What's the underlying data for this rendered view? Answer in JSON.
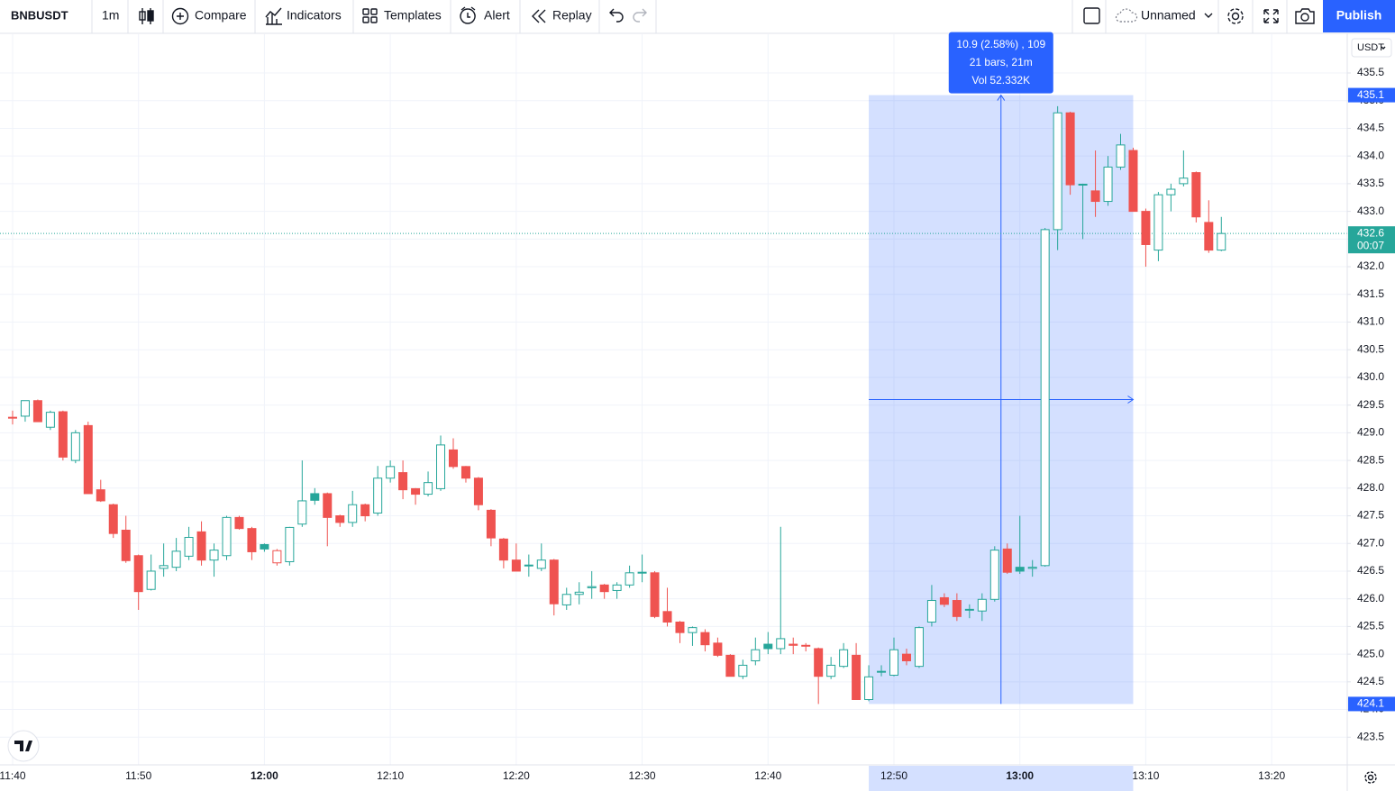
{
  "toolbar": {
    "symbol": "BNBUSDT",
    "interval": "1m",
    "compare": "Compare",
    "indicators": "Indicators",
    "templates": "Templates",
    "alert": "Alert",
    "replay": "Replay",
    "layout": "Unnamed",
    "publish": "Publish"
  },
  "price_axis_currency": "USDT",
  "chart_data": {
    "type": "candlestick",
    "up_color": "#26a69a",
    "down_color": "#ef5350",
    "grid": true,
    "xlim": [
      "11:39",
      "13:26"
    ],
    "xticks": [
      "11:40",
      "11:50",
      "12:00",
      "12:10",
      "12:20",
      "12:30",
      "12:40",
      "12:50",
      "13:00",
      "13:10",
      "13:20"
    ],
    "ylim": [
      423.0,
      436.2
    ],
    "yticks": [
      423.5,
      {
        "value": 424,
        "label": "424.0"
      },
      424.5,
      {
        "value": 425,
        "label": "425.0"
      },
      425.5,
      {
        "value": 426,
        "label": "426.0"
      },
      426.5,
      {
        "value": 427,
        "label": "427.0"
      },
      427.5,
      {
        "value": 428,
        "label": "428.0"
      },
      428.5,
      {
        "value": 429,
        "label": "429.0"
      },
      429.5,
      {
        "value": 430,
        "label": "430.0"
      },
      430.5,
      {
        "value": 431,
        "label": "431.0"
      },
      431.5,
      {
        "value": 432,
        "label": "432.0"
      },
      432.5,
      {
        "value": 433,
        "label": "433.0"
      },
      433.5,
      {
        "value": 434,
        "label": "434.0"
      },
      434.5,
      {
        "value": 435,
        "label": "435.0"
      },
      435.5
    ],
    "x": [
      "11:40",
      "11:41",
      "11:42",
      "11:43",
      "11:44",
      "11:45",
      "11:46",
      "11:47",
      "11:48",
      "11:49",
      "11:50",
      "11:51",
      "11:52",
      "11:53",
      "11:54",
      "11:55",
      "11:56",
      "11:57",
      "11:58",
      "11:59",
      "12:00",
      "12:01",
      "12:02",
      "12:03",
      "12:04",
      "12:05",
      "12:06",
      "12:07",
      "12:08",
      "12:09",
      "12:10",
      "12:11",
      "12:12",
      "12:13",
      "12:14",
      "12:15",
      "12:16",
      "12:17",
      "12:18",
      "12:19",
      "12:20",
      "12:21",
      "12:22",
      "12:23",
      "12:24",
      "12:25",
      "12:26",
      "12:27",
      "12:28",
      "12:29",
      "12:30",
      "12:31",
      "12:32",
      "12:33",
      "12:34",
      "12:35",
      "12:36",
      "12:37",
      "12:38",
      "12:39",
      "12:40",
      "12:41",
      "12:42",
      "12:43",
      "12:44",
      "12:45",
      "12:46",
      "12:47",
      "12:48",
      "12:49",
      "12:50",
      "12:51",
      "12:52",
      "12:53",
      "12:54",
      "12:55",
      "12:56",
      "12:57",
      "12:58",
      "12:59",
      "13:00",
      "13:01",
      "13:02",
      "13:03",
      "13:04",
      "13:05",
      "13:06",
      "13:07",
      "13:08",
      "13:09",
      "13:10",
      "13:11",
      "13:12",
      "13:13",
      "13:14",
      "13:15",
      "13:16"
    ],
    "open": [
      429.28,
      429.3,
      429.58,
      429.1,
      429.38,
      428.5,
      429.13,
      427.97,
      427.7,
      427.24,
      426.78,
      426.17,
      426.55,
      426.57,
      426.77,
      427.21,
      426.7,
      426.78,
      427.47,
      427.27,
      426.98,
      426.65,
      426.67,
      427.35,
      427.9,
      427.9,
      427.5,
      427.38,
      427.7,
      427.55,
      428.18,
      428.28,
      427.99,
      427.89,
      427.99,
      428.69,
      428.39,
      428.18,
      427.6,
      427.08,
      426.7,
      426.6,
      426.55,
      426.7,
      425.89,
      426.08,
      426.2,
      426.25,
      426.15,
      426.25,
      426.47,
      426.47,
      425.77,
      425.58,
      425.39,
      425.39,
      425.2,
      424.98,
      424.6,
      424.88,
      425.18,
      425.1,
      425.18,
      425.16,
      425.1,
      424.6,
      424.78,
      424.98,
      424.18,
      424.68,
      424.62,
      425.0,
      424.78,
      425.58,
      426.02,
      425.97,
      425.8,
      425.78,
      425.99,
      426.9,
      426.57,
      426.55,
      426.6,
      432.67,
      434.78,
      433.48,
      433.37,
      433.18,
      433.8,
      434.1,
      433.0,
      432.3,
      433.3,
      433.5,
      433.7,
      432.8,
      432.3
    ],
    "high": [
      429.4,
      429.58,
      429.6,
      429.4,
      429.4,
      429.05,
      429.2,
      428.15,
      427.72,
      427.5,
      426.8,
      426.8,
      427.0,
      427.1,
      427.3,
      427.4,
      427.0,
      427.5,
      427.5,
      427.3,
      427.0,
      426.9,
      427.3,
      428.5,
      428.0,
      427.92,
      427.52,
      427.95,
      427.72,
      428.4,
      428.5,
      428.5,
      428.0,
      428.3,
      428.95,
      428.9,
      428.4,
      428.2,
      427.62,
      427.1,
      427.0,
      426.8,
      427.0,
      426.72,
      426.2,
      426.3,
      426.5,
      426.27,
      426.3,
      426.6,
      426.8,
      426.5,
      426.2,
      425.6,
      425.5,
      425.45,
      425.3,
      425.0,
      424.9,
      425.3,
      425.4,
      427.3,
      425.3,
      425.2,
      425.12,
      424.95,
      425.2,
      425.2,
      424.8,
      424.8,
      425.3,
      425.1,
      425.5,
      426.25,
      426.1,
      426.1,
      425.9,
      426.1,
      426.95,
      427.0,
      427.5,
      426.7,
      432.7,
      434.9,
      434.8,
      433.5,
      434.1,
      434.0,
      434.4,
      434.15,
      433.05,
      433.35,
      433.5,
      434.1,
      433.72,
      433.2,
      432.9
    ],
    "low": [
      429.15,
      429.2,
      429.2,
      429.05,
      428.5,
      428.45,
      427.9,
      427.75,
      427.1,
      426.65,
      425.8,
      426.15,
      426.4,
      426.5,
      426.7,
      426.6,
      426.4,
      426.7,
      427.25,
      426.7,
      426.85,
      426.6,
      426.6,
      427.3,
      427.7,
      426.95,
      427.3,
      427.3,
      427.4,
      427.5,
      428.1,
      427.8,
      427.7,
      427.85,
      427.95,
      428.35,
      428.1,
      427.6,
      426.95,
      426.55,
      426.5,
      426.4,
      426.5,
      425.7,
      425.8,
      425.9,
      426.0,
      426.0,
      426.0,
      426.2,
      426.3,
      425.65,
      425.5,
      425.2,
      425.15,
      425.05,
      424.95,
      424.6,
      424.55,
      424.8,
      425.0,
      425.0,
      425.0,
      425.05,
      424.1,
      424.55,
      424.75,
      424.18,
      424.15,
      424.6,
      424.6,
      424.8,
      424.75,
      425.5,
      425.85,
      425.6,
      425.65,
      425.6,
      425.95,
      426.45,
      426.45,
      426.4,
      426.58,
      432.3,
      433.3,
      432.5,
      432.9,
      433.1,
      433.75,
      433.0,
      432.0,
      432.1,
      433.0,
      433.45,
      432.8,
      432.25,
      432.28
    ],
    "close": [
      429.27,
      429.58,
      429.2,
      429.37,
      428.56,
      429.0,
      427.9,
      427.77,
      427.18,
      426.69,
      426.13,
      426.5,
      426.6,
      426.86,
      427.11,
      426.7,
      426.88,
      427.47,
      427.27,
      426.85,
      426.9,
      426.87,
      427.29,
      427.77,
      427.78,
      427.47,
      427.38,
      427.7,
      427.5,
      428.18,
      428.39,
      427.97,
      427.89,
      428.1,
      428.78,
      428.39,
      428.18,
      427.7,
      427.1,
      426.7,
      426.5,
      426.61,
      426.7,
      425.91,
      426.08,
      426.12,
      426.22,
      426.13,
      426.25,
      426.47,
      426.48,
      425.68,
      425.58,
      425.39,
      425.48,
      425.17,
      424.98,
      424.6,
      424.8,
      425.08,
      425.1,
      425.28,
      425.16,
      425.15,
      424.6,
      424.8,
      425.08,
      424.18,
      424.59,
      424.69,
      425.08,
      424.88,
      425.48,
      425.97,
      425.9,
      425.68,
      425.81,
      425.99,
      426.88,
      426.48,
      426.5,
      426.57,
      432.67,
      434.78,
      433.48,
      433.49,
      433.18,
      433.8,
      434.2,
      433.0,
      432.4,
      433.3,
      433.4,
      433.6,
      432.9,
      432.3,
      432.6
    ],
    "last_price": 432.6,
    "countdown": "00:07",
    "measure": {
      "start": "12:48",
      "end": "13:09",
      "low": 424.1,
      "high": 435.1,
      "lines": [
        "10.9 (2.58%) , 109",
        "21 bars, 21m",
        "Vol 52.332K"
      ]
    }
  }
}
